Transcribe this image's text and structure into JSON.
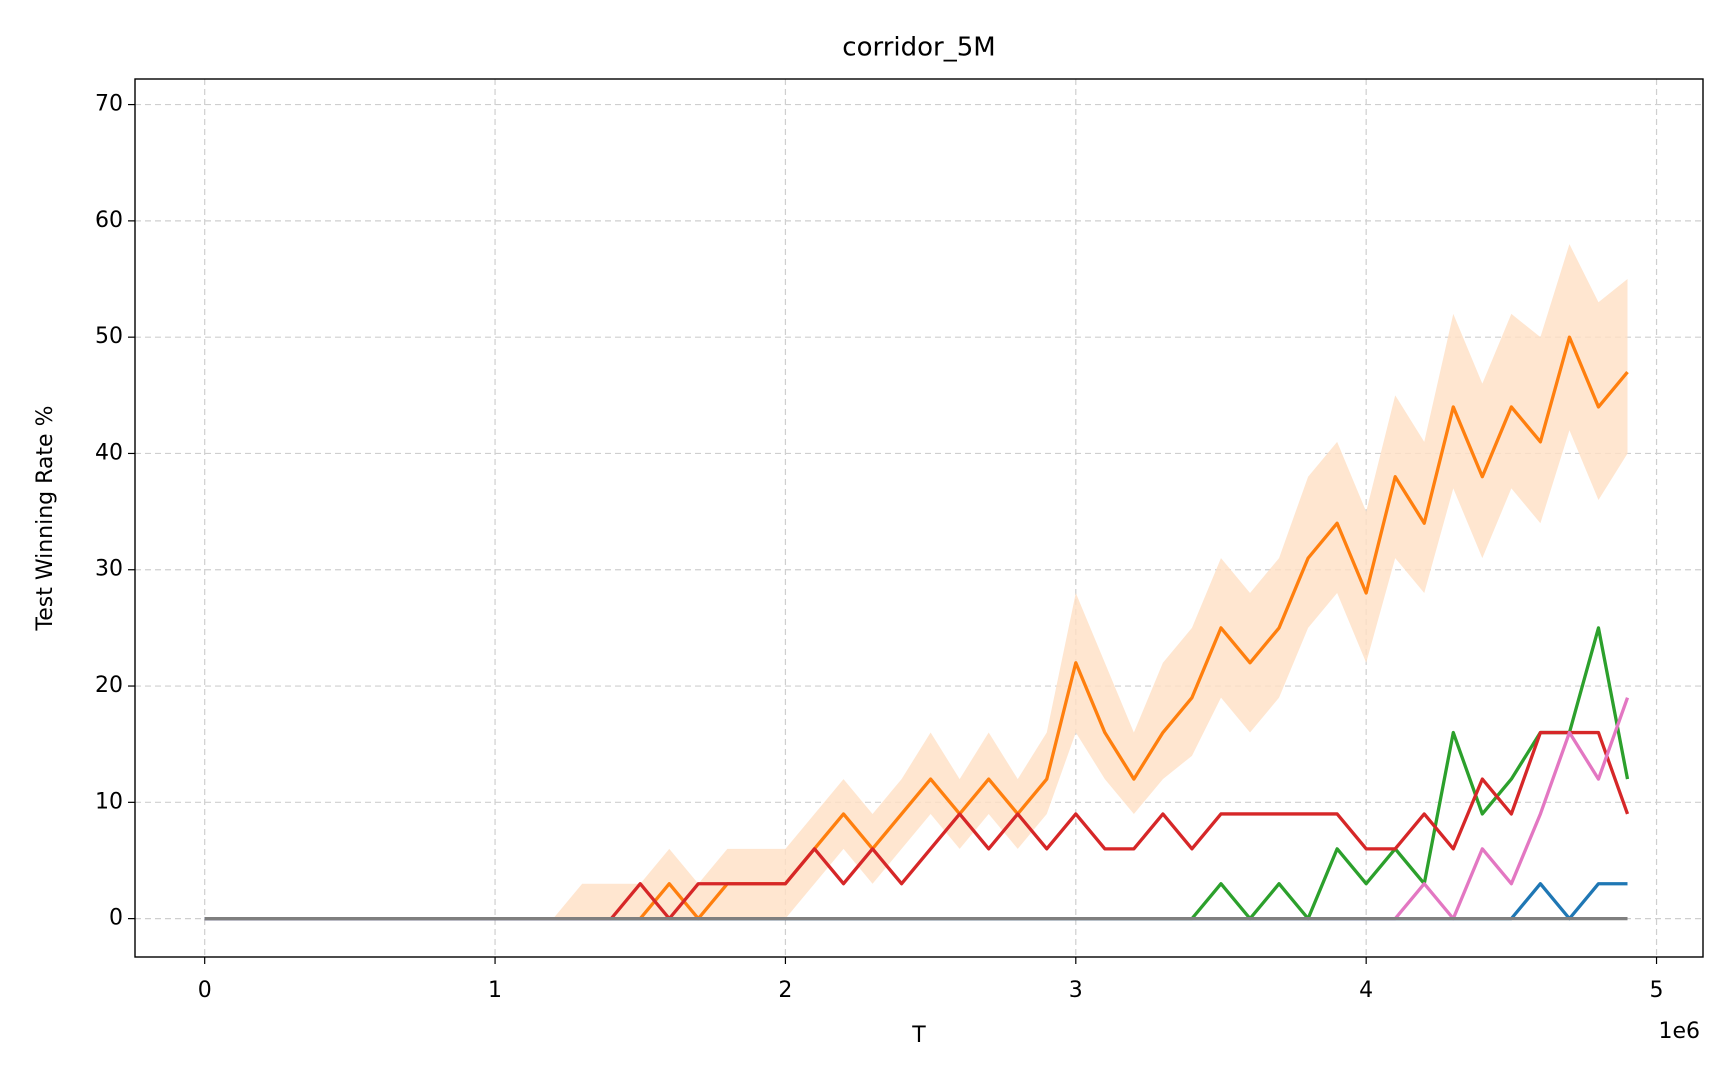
{
  "chart_data": {
    "type": "line",
    "title": "corridor_5M",
    "xlabel": "T",
    "ylabel": "Test Winning Rate %",
    "x_offset_label": "1e6",
    "x": [
      0,
      100000,
      200000,
      300000,
      400000,
      500000,
      600000,
      700000,
      800000,
      900000,
      1000000,
      1100000,
      1200000,
      1300000,
      1400000,
      1500000,
      1600000,
      1700000,
      1800000,
      1900000,
      2000000,
      2100000,
      2200000,
      2300000,
      2400000,
      2500000,
      2600000,
      2700000,
      2800000,
      2900000,
      3000000,
      3100000,
      3200000,
      3300000,
      3400000,
      3500000,
      3600000,
      3700000,
      3800000,
      3900000,
      4000000,
      4100000,
      4200000,
      4300000,
      4400000,
      4500000,
      4600000,
      4700000,
      4800000,
      4900000
    ],
    "series": [
      {
        "color": "#ff7f0e",
        "band_color": "#ffe0c4",
        "values": [
          0,
          0,
          0,
          0,
          0,
          0,
          0,
          0,
          0,
          0,
          0,
          0,
          0,
          0,
          0,
          0,
          3,
          0,
          3,
          3,
          3,
          6,
          9,
          6,
          9,
          12,
          9,
          12,
          9,
          12,
          22,
          16,
          12,
          16,
          19,
          25,
          22,
          25,
          31,
          34,
          28,
          38,
          34,
          44,
          38,
          44,
          41,
          50,
          44,
          47
        ],
        "lower": [
          0,
          0,
          0,
          0,
          0,
          0,
          0,
          0,
          0,
          0,
          0,
          0,
          0,
          0,
          0,
          0,
          0,
          0,
          0,
          0,
          0,
          3,
          6,
          3,
          6,
          9,
          6,
          9,
          6,
          9,
          16,
          12,
          9,
          12,
          14,
          19,
          16,
          19,
          25,
          28,
          22,
          31,
          28,
          37,
          31,
          37,
          34,
          42,
          36,
          40
        ],
        "upper": [
          0,
          0,
          0,
          0,
          0,
          0,
          0,
          0,
          0,
          0,
          0,
          0,
          0,
          3,
          3,
          3,
          6,
          3,
          6,
          6,
          6,
          9,
          12,
          9,
          12,
          16,
          12,
          16,
          12,
          16,
          28,
          22,
          16,
          22,
          25,
          31,
          28,
          31,
          38,
          41,
          35,
          45,
          41,
          52,
          46,
          52,
          50,
          58,
          53,
          55
        ]
      },
      {
        "color": "#2ca02c",
        "values": [
          0,
          0,
          0,
          0,
          0,
          0,
          0,
          0,
          0,
          0,
          0,
          0,
          0,
          0,
          0,
          0,
          0,
          0,
          0,
          0,
          0,
          0,
          0,
          0,
          0,
          0,
          0,
          0,
          0,
          0,
          0,
          0,
          0,
          0,
          0,
          3,
          0,
          3,
          0,
          6,
          3,
          6,
          3,
          16,
          9,
          12,
          16,
          16,
          25,
          12
        ]
      },
      {
        "color": "#d62728",
        "values": [
          0,
          0,
          0,
          0,
          0,
          0,
          0,
          0,
          0,
          0,
          0,
          0,
          0,
          0,
          0,
          3,
          0,
          3,
          3,
          3,
          3,
          6,
          3,
          6,
          3,
          6,
          9,
          6,
          9,
          6,
          9,
          6,
          6,
          9,
          6,
          9,
          9,
          9,
          9,
          9,
          6,
          6,
          9,
          6,
          12,
          9,
          16,
          16,
          16,
          9
        ]
      },
      {
        "color": "#e377c2",
        "values": [
          0,
          0,
          0,
          0,
          0,
          0,
          0,
          0,
          0,
          0,
          0,
          0,
          0,
          0,
          0,
          0,
          0,
          0,
          0,
          0,
          0,
          0,
          0,
          0,
          0,
          0,
          0,
          0,
          0,
          0,
          0,
          0,
          0,
          0,
          0,
          0,
          0,
          0,
          0,
          0,
          0,
          0,
          3,
          0,
          6,
          3,
          9,
          16,
          12,
          19
        ]
      },
      {
        "color": "#1f77b4",
        "values": [
          0,
          0,
          0,
          0,
          0,
          0,
          0,
          0,
          0,
          0,
          0,
          0,
          0,
          0,
          0,
          0,
          0,
          0,
          0,
          0,
          0,
          0,
          0,
          0,
          0,
          0,
          0,
          0,
          0,
          0,
          0,
          0,
          0,
          0,
          0,
          0,
          0,
          0,
          0,
          0,
          0,
          0,
          0,
          0,
          0,
          0,
          3,
          0,
          3,
          3
        ]
      },
      {
        "color": "#7f7f7f",
        "values": [
          0,
          0,
          0,
          0,
          0,
          0,
          0,
          0,
          0,
          0,
          0,
          0,
          0,
          0,
          0,
          0,
          0,
          0,
          0,
          0,
          0,
          0,
          0,
          0,
          0,
          0,
          0,
          0,
          0,
          0,
          0,
          0,
          0,
          0,
          0,
          0,
          0,
          0,
          0,
          0,
          0,
          0,
          0,
          0,
          0,
          0,
          0,
          0,
          0,
          0
        ]
      }
    ],
    "xlim": [
      -240000,
      5160000
    ],
    "xticks": [
      {
        "value": 0,
        "label": "0"
      },
      {
        "value": 1000000,
        "label": "1"
      },
      {
        "value": 2000000,
        "label": "2"
      },
      {
        "value": 3000000,
        "label": "3"
      },
      {
        "value": 4000000,
        "label": "4"
      },
      {
        "value": 5000000,
        "label": "5"
      }
    ],
    "ylim": [
      -3.3,
      72.2
    ],
    "yticks": [
      0,
      10,
      20,
      30,
      40,
      50,
      60,
      70
    ],
    "grid": true
  }
}
